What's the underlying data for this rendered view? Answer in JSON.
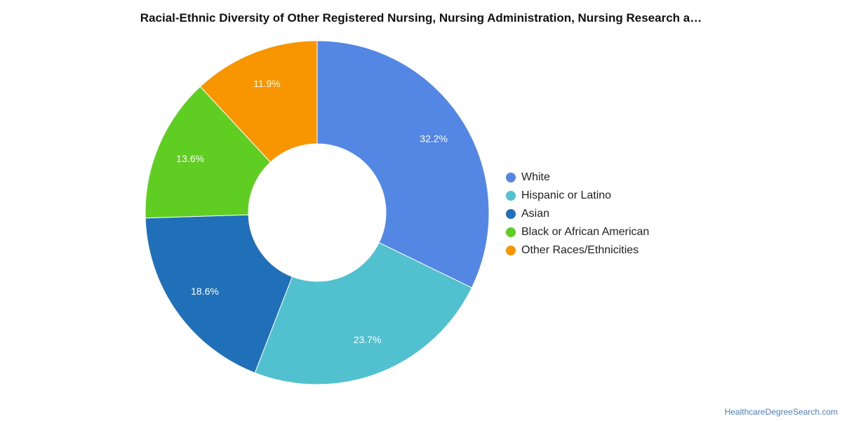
{
  "chart_data": {
    "type": "pie",
    "title": "Racial-Ethnic Diversity of Other Registered Nursing, Nursing Administration, Nursing Research a…",
    "categories": [
      "White",
      "Hispanic or Latino",
      "Asian",
      "Black or African American",
      "Other Races/Ethnicities"
    ],
    "values": [
      32.2,
      23.7,
      18.6,
      13.6,
      11.9
    ],
    "value_labels": [
      "32.2%",
      "23.7%",
      "18.6%",
      "13.6%",
      "11.9%"
    ],
    "colors": [
      "#5486e3",
      "#51c0cf",
      "#1f70b8",
      "#60cd22",
      "#f79600"
    ],
    "donut": true,
    "legend_position": "right"
  },
  "credit": "HealthcareDegreeSearch.com"
}
